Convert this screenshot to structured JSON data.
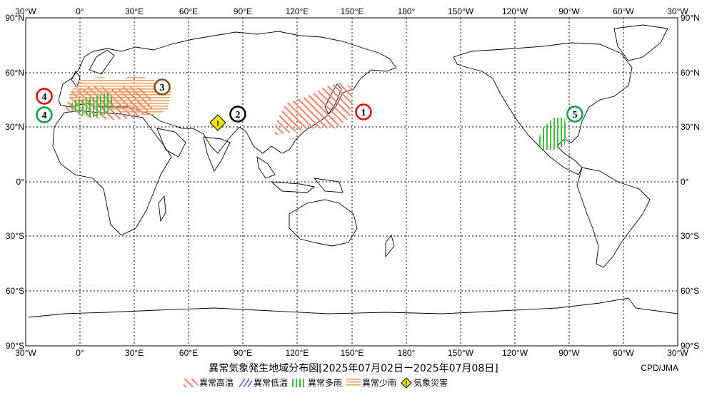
{
  "map": {
    "top_lon_labels": [
      "30°W",
      "0°",
      "30°E",
      "60°E",
      "90°E",
      "120°E",
      "150°E",
      "180°",
      "150°W",
      "120°W",
      "90°W",
      "60°W",
      "30°W"
    ],
    "bottom_lon_labels": [
      "30°W",
      "0°",
      "30°E",
      "60°E",
      "90°E",
      "120°E",
      "150°E",
      "180°",
      "150°W",
      "120°W",
      "90°W",
      "60°W",
      "30°W"
    ],
    "lat_labels": [
      "90°N",
      "60°N",
      "30°N",
      "0°",
      "30°S",
      "60°S",
      "90°S"
    ],
    "markers": [
      {
        "label": "1",
        "color": "#e00000"
      },
      {
        "label": "2",
        "color": "#000000"
      },
      {
        "label": "3",
        "color": "#8b4513"
      },
      {
        "label": "4",
        "color": "#e00000"
      },
      {
        "label": "4",
        "color": "#00a040"
      },
      {
        "label": "5",
        "color": "#00a040"
      }
    ],
    "disaster_icon": "exclamation-diamond-icon",
    "colors": {
      "warm": "#f08060",
      "cold": "#4060e0",
      "wet": "#40c040",
      "dry": "#f0a060",
      "disaster": "#f0e000"
    }
  },
  "title": "異常気象発生地域分布図[2025年07月02日ー2025年07月08日]",
  "credit": "CPD/JMA",
  "legend": [
    {
      "name": "warm",
      "label": "異常高温"
    },
    {
      "name": "cold",
      "label": "異常低温"
    },
    {
      "name": "wet",
      "label": "異常多雨"
    },
    {
      "name": "dry",
      "label": "異常少雨"
    },
    {
      "name": "disaster",
      "label": "気象災害"
    }
  ]
}
